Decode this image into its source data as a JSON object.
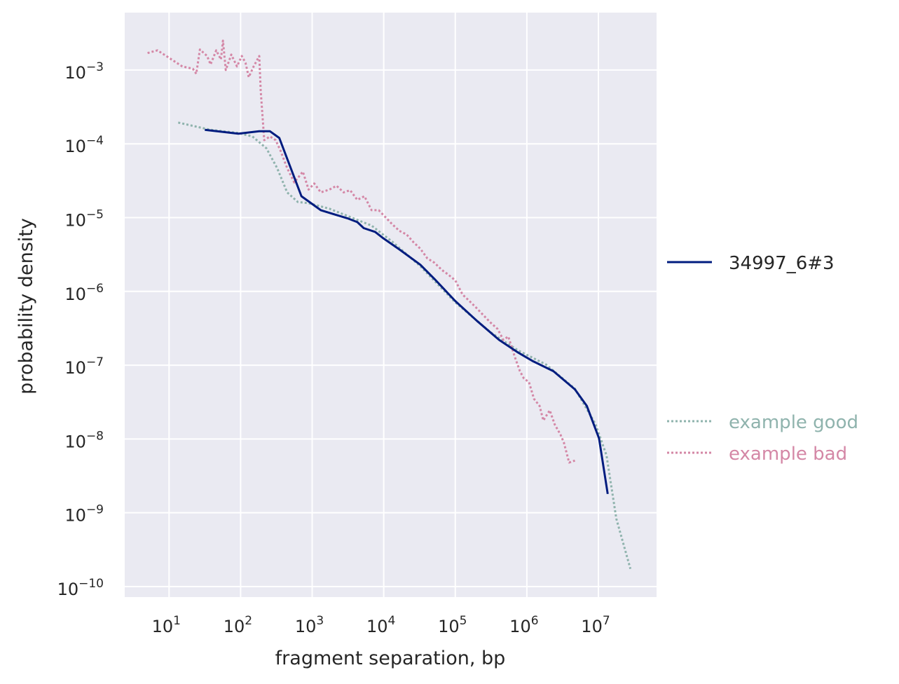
{
  "chart_data": {
    "type": "line",
    "xlabel": "fragment separation, bp",
    "ylabel": "probability density",
    "xscale": "log",
    "yscale": "log",
    "xlim": [
      2.4,
      65000000.0
    ],
    "ylim": [
      7.2e-11,
      0.006
    ],
    "grid": true,
    "background": "#eaeaf2",
    "xticks": [
      10,
      100,
      1000,
      10000,
      100000,
      1000000,
      10000000
    ],
    "xtick_labels": [
      [
        "10",
        "1"
      ],
      [
        "10",
        "2"
      ],
      [
        "10",
        "3"
      ],
      [
        "10",
        "4"
      ],
      [
        "10",
        "5"
      ],
      [
        "10",
        "6"
      ],
      [
        "10",
        "7"
      ]
    ],
    "yticks": [
      0.001,
      0.0001,
      1e-05,
      1e-06,
      1e-07,
      1e-08,
      1e-09,
      1e-10
    ],
    "ytick_labels": [
      [
        "10",
        "−3"
      ],
      [
        "10",
        "−4"
      ],
      [
        "10",
        "−5"
      ],
      [
        "10",
        "−6"
      ],
      [
        "10",
        "−7"
      ],
      [
        "10",
        "−8"
      ],
      [
        "10",
        "−9"
      ],
      [
        "10",
        "−10"
      ]
    ],
    "legend_placement": "right",
    "series": [
      {
        "name": "34997_6#3",
        "color": "#001c7f",
        "style": "solid",
        "x": [
          31.6,
          93,
          182,
          257,
          347,
          708,
          1320,
          2090,
          3090,
          4270,
          5250,
          7590,
          10000,
          16600,
          32400,
          51000,
          100000,
          200000,
          410000,
          760000,
          1200000,
          2350000,
          4700000,
          6900000,
          10200000,
          13500000
        ],
        "y": [
          0.000155,
          0.000137,
          0.000148,
          0.000148,
          0.00012,
          1.95e-05,
          1.26e-05,
          1.1e-05,
          9.8e-06,
          8.7e-06,
          7.2e-06,
          6.4e-06,
          5.2e-06,
          3.7e-06,
          2.3e-06,
          1.48e-06,
          7.4e-07,
          4e-07,
          2.2e-07,
          1.48e-07,
          1.14e-07,
          8.3e-08,
          4.7e-08,
          2.8e-08,
          1.02e-08,
          1.8e-09
        ]
      },
      {
        "name": "example good",
        "color": "#8fb3ad",
        "style": "dotted",
        "x": [
          13.4,
          37.8,
          93,
          146,
          229,
          324,
          447,
          631,
          891,
          1740,
          3390,
          6760,
          13200,
          32400,
          100000,
          310000,
          760000,
          1860000,
          4700000,
          9100000,
          13000000,
          17800000,
          28000000
        ],
        "y": [
          0.000194,
          0.000155,
          0.00014,
          0.000126,
          8.7e-05,
          4.7e-05,
          2.2e-05,
          1.63e-05,
          1.57e-05,
          1.32e-05,
          1.02e-05,
          7.8e-06,
          4.7e-06,
          2.2e-06,
          7.1e-07,
          2.8e-07,
          1.58e-07,
          1.02e-07,
          4.8e-08,
          1.6e-08,
          6e-09,
          8.3e-10,
          1.74e-10
        ]
      },
      {
        "name": "example bad",
        "color": "#d487a6",
        "style": "dotted",
        "x": [
          5.0,
          6.9,
          9.8,
          15.3,
          21.5,
          24,
          27,
          34,
          38,
          45.6,
          53,
          56.6,
          62,
          74,
          89,
          104,
          117,
          130,
          152,
          182,
          191,
          214,
          257,
          309,
          361,
          447,
          562,
          741,
          891,
          1070,
          1320,
          1740,
          2190,
          2750,
          3390,
          4270,
          5370,
          6760,
          8510,
          10500,
          13200,
          16600,
          20900,
          25700,
          32400,
          40700,
          51000,
          65000,
          79000,
          100000,
          126000,
          158000,
          200000,
          245000,
          310000,
          390000,
          470000,
          550000,
          680000,
          800000,
          910000,
          1070000,
          1260000,
          1510000,
          1700000,
          2090000,
          2450000,
          2950000,
          3300000,
          3900000,
          4700000
        ],
        "y": [
          0.0017,
          0.00185,
          0.00148,
          0.00112,
          0.00104,
          0.00089,
          0.0019,
          0.00155,
          0.00119,
          0.00185,
          0.00139,
          0.0025,
          0.001,
          0.00162,
          0.00112,
          0.00155,
          0.00125,
          0.0008,
          0.00112,
          0.00155,
          0.00052,
          0.000112,
          0.000126,
          0.000112,
          8.1e-05,
          4.7e-05,
          3e-05,
          4.2e-05,
          2.4e-05,
          2.9e-05,
          2.2e-05,
          2.4e-05,
          2.7e-05,
          2.2e-05,
          2.35e-05,
          1.74e-05,
          1.95e-05,
          1.26e-05,
          1.26e-05,
          1.02e-05,
          8.1e-06,
          6.6e-06,
          5.9e-06,
          4.7e-06,
          3.8e-06,
          2.8e-06,
          2.45e-06,
          1.95e-06,
          1.7e-06,
          1.41e-06,
          9.1e-07,
          7.4e-07,
          5.9e-07,
          4.8e-07,
          3.8e-07,
          3.1e-07,
          2.2e-07,
          2.45e-07,
          1.29e-07,
          8.3e-08,
          6.6e-08,
          5.9e-08,
          3.5e-08,
          2.8e-08,
          1.78e-08,
          2.45e-08,
          1.58e-08,
          1.15e-08,
          8.9e-09,
          4.8e-09,
          5.1e-09
        ]
      }
    ]
  }
}
